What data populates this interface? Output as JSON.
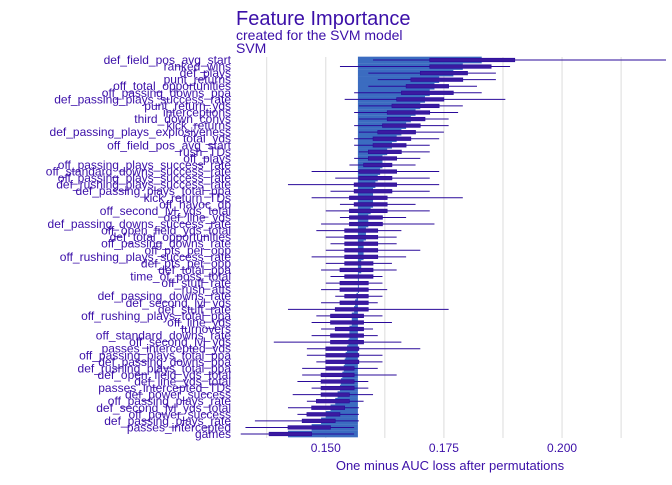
{
  "chart_data": {
    "type": "bar",
    "title": "Feature Importance",
    "subtitle": "created for the SVM model",
    "facet_label": "SVM",
    "xlabel": "One minus AUC loss after permutations",
    "xlim": [
      0.131,
      0.222
    ],
    "xticks": [
      "0.150",
      "0.175",
      "0.200"
    ],
    "xtick_values": [
      0.15,
      0.175,
      0.2
    ],
    "baseline": 0.1568,
    "grid": true,
    "features": [
      {
        "name": "def_field_pos_avg_start",
        "value": 0.183,
        "min": 0.16,
        "max": 0.222,
        "q1": 0.172,
        "q3": 0.19
      },
      {
        "name": "ranked_wins",
        "value": 0.179,
        "min": 0.153,
        "max": 0.189,
        "q1": 0.172,
        "q3": 0.185
      },
      {
        "name": "def_plays",
        "value": 0.177,
        "min": 0.159,
        "max": 0.186,
        "q1": 0.17,
        "q3": 0.18
      },
      {
        "name": "punt_returns",
        "value": 0.174,
        "min": 0.161,
        "max": 0.186,
        "q1": 0.168,
        "q3": 0.179
      },
      {
        "name": "off_total_opportunities",
        "value": 0.173,
        "min": 0.159,
        "max": 0.182,
        "q1": 0.167,
        "q3": 0.176
      },
      {
        "name": "off_passing_downs_ppa",
        "value": 0.172,
        "min": 0.156,
        "max": 0.183,
        "q1": 0.166,
        "q3": 0.177
      },
      {
        "name": "def_passing_plays_success_rate",
        "value": 0.171,
        "min": 0.154,
        "max": 0.188,
        "q1": 0.165,
        "q3": 0.175
      },
      {
        "name": "punt_return_yds",
        "value": 0.17,
        "min": 0.157,
        "max": 0.179,
        "q1": 0.164,
        "q3": 0.174
      },
      {
        "name": "interceptions",
        "value": 0.169,
        "min": 0.156,
        "max": 0.178,
        "q1": 0.163,
        "q3": 0.172
      },
      {
        "name": "third_down_convs",
        "value": 0.168,
        "min": 0.157,
        "max": 0.176,
        "q1": 0.163,
        "q3": 0.171
      },
      {
        "name": "kick_returns",
        "value": 0.167,
        "min": 0.156,
        "max": 0.176,
        "q1": 0.162,
        "q3": 0.17
      },
      {
        "name": "def_passing_plays_explosiveness",
        "value": 0.166,
        "min": 0.157,
        "max": 0.175,
        "q1": 0.161,
        "q3": 0.169
      },
      {
        "name": "total_yds",
        "value": 0.165,
        "min": 0.156,
        "max": 0.174,
        "q1": 0.16,
        "q3": 0.168
      },
      {
        "name": "off_field_pos_avg_start",
        "value": 0.164,
        "min": 0.156,
        "max": 0.172,
        "q1": 0.16,
        "q3": 0.167
      },
      {
        "name": "rush_TDs",
        "value": 0.163,
        "min": 0.157,
        "max": 0.172,
        "q1": 0.159,
        "q3": 0.166
      },
      {
        "name": "off_plays",
        "value": 0.162,
        "min": 0.156,
        "max": 0.17,
        "q1": 0.159,
        "q3": 0.165
      },
      {
        "name": "off_passing_plays_success_rate",
        "value": 0.162,
        "min": 0.155,
        "max": 0.169,
        "q1": 0.158,
        "q3": 0.164
      },
      {
        "name": "off_standard_downs_success_rate",
        "value": 0.1615,
        "min": 0.147,
        "max": 0.174,
        "q1": 0.157,
        "q3": 0.165
      },
      {
        "name": "off_passing_plays_success_rate",
        "value": 0.161,
        "min": 0.152,
        "max": 0.172,
        "q1": 0.157,
        "q3": 0.164
      },
      {
        "name": "def_rushing_plays_success_rate",
        "value": 0.1605,
        "min": 0.142,
        "max": 0.174,
        "q1": 0.156,
        "q3": 0.165
      },
      {
        "name": "def_passing_plays_total_ppa",
        "value": 0.16,
        "min": 0.151,
        "max": 0.172,
        "q1": 0.156,
        "q3": 0.164
      },
      {
        "name": "kick_return_TDs",
        "value": 0.16,
        "min": 0.147,
        "max": 0.179,
        "q1": 0.155,
        "q3": 0.163
      },
      {
        "name": "off_havoc_db",
        "value": 0.16,
        "min": 0.153,
        "max": 0.169,
        "q1": 0.156,
        "q3": 0.163
      },
      {
        "name": "off_second_lvl_yds_total",
        "value": 0.1595,
        "min": 0.15,
        "max": 0.172,
        "q1": 0.155,
        "q3": 0.163
      },
      {
        "name": "def_line_yds",
        "value": 0.159,
        "min": 0.153,
        "max": 0.167,
        "q1": 0.155,
        "q3": 0.162
      },
      {
        "name": "def_passing_downs_success_rate",
        "value": 0.159,
        "min": 0.149,
        "max": 0.173,
        "q1": 0.155,
        "q3": 0.162
      },
      {
        "name": "off_open_field_yds_total",
        "value": 0.1585,
        "min": 0.148,
        "max": 0.166,
        "q1": 0.154,
        "q3": 0.161
      },
      {
        "name": "def_total_opportunities",
        "value": 0.1585,
        "min": 0.15,
        "max": 0.165,
        "q1": 0.154,
        "q3": 0.161
      },
      {
        "name": "off_passing_downs_rate",
        "value": 0.158,
        "min": 0.151,
        "max": 0.165,
        "q1": 0.154,
        "q3": 0.161
      },
      {
        "name": "off_pts_per_opp",
        "value": 0.158,
        "min": 0.15,
        "max": 0.17,
        "q1": 0.154,
        "q3": 0.161
      },
      {
        "name": "off_rushing_plays_success_rate",
        "value": 0.158,
        "min": 0.147,
        "max": 0.167,
        "q1": 0.154,
        "q3": 0.161
      },
      {
        "name": "def_pts_per_opp",
        "value": 0.1575,
        "min": 0.15,
        "max": 0.164,
        "q1": 0.154,
        "q3": 0.16
      },
      {
        "name": "def_total_ppa",
        "value": 0.1575,
        "min": 0.149,
        "max": 0.165,
        "q1": 0.153,
        "q3": 0.16
      },
      {
        "name": "time_of_poss_total",
        "value": 0.157,
        "min": 0.151,
        "max": 0.162,
        "q1": 0.154,
        "q3": 0.16
      },
      {
        "name": "off_stuff_rate",
        "value": 0.157,
        "min": 0.15,
        "max": 0.162,
        "q1": 0.153,
        "q3": 0.159
      },
      {
        "name": "rush_atts",
        "value": 0.157,
        "min": 0.149,
        "max": 0.163,
        "q1": 0.153,
        "q3": 0.159
      },
      {
        "name": "def_passing_downs_rate",
        "value": 0.1565,
        "min": 0.152,
        "max": 0.162,
        "q1": 0.154,
        "q3": 0.159
      },
      {
        "name": "def_second_lvl_yds",
        "value": 0.1562,
        "min": 0.149,
        "max": 0.161,
        "q1": 0.153,
        "q3": 0.159
      },
      {
        "name": "def_stuff_rate",
        "value": 0.156,
        "min": 0.142,
        "max": 0.176,
        "q1": 0.152,
        "q3": 0.159
      },
      {
        "name": "off_rushing_plays_total_ppa",
        "value": 0.1555,
        "min": 0.148,
        "max": 0.162,
        "q1": 0.151,
        "q3": 0.158
      },
      {
        "name": "off_line_yds",
        "value": 0.1555,
        "min": 0.147,
        "max": 0.164,
        "q1": 0.151,
        "q3": 0.158
      },
      {
        "name": "turnovers",
        "value": 0.155,
        "min": 0.149,
        "max": 0.16,
        "q1": 0.152,
        "q3": 0.158
      },
      {
        "name": "off_standard_downs_rate",
        "value": 0.155,
        "min": 0.147,
        "max": 0.161,
        "q1": 0.151,
        "q3": 0.158
      },
      {
        "name": "off_second_lvl_yds",
        "value": 0.1548,
        "min": 0.139,
        "max": 0.166,
        "q1": 0.151,
        "q3": 0.158
      },
      {
        "name": "passes_intercepted_yds",
        "value": 0.1545,
        "min": 0.146,
        "max": 0.17,
        "q1": 0.15,
        "q3": 0.157
      },
      {
        "name": "off_passing_plays_total_ppa",
        "value": 0.1542,
        "min": 0.146,
        "max": 0.162,
        "q1": 0.15,
        "q3": 0.157
      },
      {
        "name": "def_passing_downs_ppa",
        "value": 0.154,
        "min": 0.148,
        "max": 0.162,
        "q1": 0.15,
        "q3": 0.157
      },
      {
        "name": "def_rushing_plays_total_ppa",
        "value": 0.1538,
        "min": 0.145,
        "max": 0.161,
        "q1": 0.15,
        "q3": 0.156
      },
      {
        "name": "def_open_field_yds_total",
        "value": 0.1535,
        "min": 0.145,
        "max": 0.165,
        "q1": 0.149,
        "q3": 0.156
      },
      {
        "name": "def_line_yds_total",
        "value": 0.1532,
        "min": 0.144,
        "max": 0.159,
        "q1": 0.149,
        "q3": 0.156
      },
      {
        "name": "passes_intercepted_TDs",
        "value": 0.153,
        "min": 0.147,
        "max": 0.159,
        "q1": 0.149,
        "q3": 0.156
      },
      {
        "name": "def_power_success",
        "value": 0.1525,
        "min": 0.143,
        "max": 0.16,
        "q1": 0.149,
        "q3": 0.155
      },
      {
        "name": "off_passing_plays_rate",
        "value": 0.152,
        "min": 0.146,
        "max": 0.158,
        "q1": 0.148,
        "q3": 0.155
      },
      {
        "name": "def_second_lvl_yds_total",
        "value": 0.151,
        "min": 0.142,
        "max": 0.157,
        "q1": 0.147,
        "q3": 0.154
      },
      {
        "name": "off_power_success",
        "value": 0.15,
        "min": 0.144,
        "max": 0.157,
        "q1": 0.146,
        "q3": 0.153
      },
      {
        "name": "def_passing_plays_rate",
        "value": 0.149,
        "min": 0.135,
        "max": 0.157,
        "q1": 0.145,
        "q3": 0.152
      },
      {
        "name": "passes_intercepted",
        "value": 0.147,
        "min": 0.133,
        "max": 0.156,
        "q1": 0.142,
        "q3": 0.151
      },
      {
        "name": "games",
        "value": 0.142,
        "min": 0.132,
        "max": 0.156,
        "q1": 0.138,
        "q3": 0.147
      }
    ]
  }
}
